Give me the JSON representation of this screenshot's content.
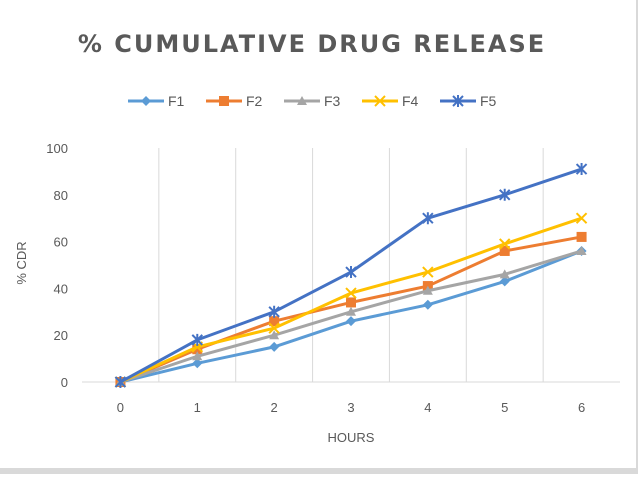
{
  "chart_data": {
    "type": "line",
    "title": "% CUMULATIVE DRUG RELEASE",
    "xlabel": "HOURS",
    "ylabel": "% CDR",
    "x": [
      0,
      1,
      2,
      3,
      4,
      5,
      6
    ],
    "xlim": [
      0,
      6
    ],
    "ylim": [
      0,
      100
    ],
    "yticks": [
      0,
      20,
      40,
      60,
      80,
      100
    ],
    "grid": "vertical",
    "legend_position": "top",
    "series": [
      {
        "name": "F1",
        "color": "#5b9bd5",
        "marker": "diamond",
        "values": [
          0,
          8,
          15,
          26,
          33,
          43,
          56
        ]
      },
      {
        "name": "F2",
        "color": "#ed7d31",
        "marker": "square",
        "values": [
          0,
          14,
          26,
          34,
          41,
          56,
          62
        ]
      },
      {
        "name": "F3",
        "color": "#a5a5a5",
        "marker": "triangle",
        "values": [
          0,
          11,
          20,
          30,
          39,
          46,
          56
        ]
      },
      {
        "name": "F4",
        "color": "#ffc000",
        "marker": "x",
        "values": [
          0,
          15,
          23,
          38,
          47,
          59,
          70
        ]
      },
      {
        "name": "F5",
        "color": "#4472c4",
        "marker": "star",
        "values": [
          0,
          18,
          30,
          47,
          70,
          80,
          91
        ]
      }
    ]
  }
}
